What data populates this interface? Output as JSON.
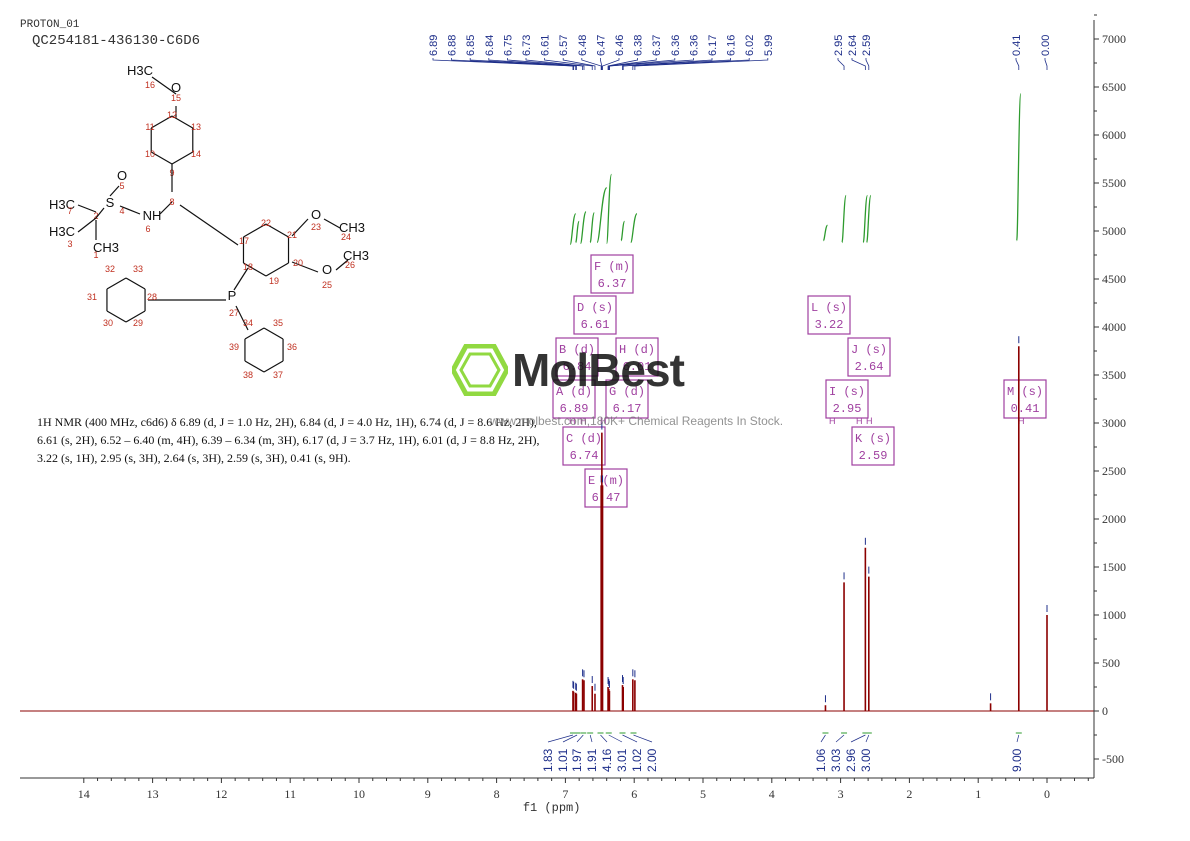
{
  "header": {
    "line1": "PROTON_01",
    "line2": "QC254181-436130-C6D6"
  },
  "summary_text": "1H NMR (400 MHz, c6d6) δ 6.89 (d, J = 1.0 Hz, 2H), 6.84 (d, J = 4.0 Hz, 1H), 6.74 (d, J = 8.6 Hz, 2H), 6.61 (s, 2H), 6.52 – 6.40 (m, 4H), 6.39 – 6.34 (m, 3H), 6.17 (d, J = 3.7 Hz, 1H), 6.01 (d, J = 8.8 Hz, 2H), 3.22 (s, 1H), 2.95 (s, 3H), 2.64 (s, 3H), 2.59 (s, 3H), 0.41 (s, 9H).",
  "watermark": {
    "word": "MolBest",
    "tagline": "www.molbest.com,180K+ Chemical Reagents In Stock."
  },
  "chart_data": {
    "type": "line",
    "xlabel": "f1 (ppm)",
    "x_reversed": true,
    "xlim": [
      -0.65,
      14.9
    ],
    "ylim": [
      -700,
      7200
    ],
    "x_ticks": [
      14,
      13,
      12,
      11,
      10,
      9,
      8,
      7,
      6,
      5,
      4,
      3,
      2,
      1,
      0
    ],
    "y_ticks": [
      -500,
      0,
      500,
      1000,
      1500,
      2000,
      2500,
      3000,
      3500,
      4000,
      4500,
      5000,
      5500,
      6000,
      6500,
      7000
    ],
    "peak_labels_left": [
      "6.89",
      "6.88",
      "6.85",
      "6.84",
      "6.75",
      "6.73",
      "6.61",
      "6.57",
      "6.48",
      "6.47",
      "6.46",
      "6.38",
      "6.37",
      "6.36",
      "6.36",
      "6.17",
      "6.16",
      "6.02",
      "5.99"
    ],
    "peak_labels_right": [
      "2.95",
      "2.64",
      "2.59"
    ],
    "peak_labels_far": [
      "0.41",
      "0.00"
    ],
    "peaks": [
      {
        "ppm": 6.89,
        "height": 210
      },
      {
        "ppm": 6.88,
        "height": 200
      },
      {
        "ppm": 6.85,
        "height": 190
      },
      {
        "ppm": 6.84,
        "height": 180
      },
      {
        "ppm": 6.75,
        "height": 330
      },
      {
        "ppm": 6.73,
        "height": 320
      },
      {
        "ppm": 6.61,
        "height": 260
      },
      {
        "ppm": 6.57,
        "height": 180
      },
      {
        "ppm": 6.48,
        "height": 2350
      },
      {
        "ppm": 6.47,
        "height": 2900
      },
      {
        "ppm": 6.46,
        "height": 2350
      },
      {
        "ppm": 6.38,
        "height": 250
      },
      {
        "ppm": 6.37,
        "height": 230
      },
      {
        "ppm": 6.36,
        "height": 210
      },
      {
        "ppm": 6.17,
        "height": 270
      },
      {
        "ppm": 6.16,
        "height": 250
      },
      {
        "ppm": 6.02,
        "height": 330
      },
      {
        "ppm": 5.99,
        "height": 320
      },
      {
        "ppm": 3.22,
        "height": 60
      },
      {
        "ppm": 2.95,
        "height": 1340
      },
      {
        "ppm": 2.64,
        "height": 1700
      },
      {
        "ppm": 2.59,
        "height": 1400
      },
      {
        "ppm": 0.82,
        "height": 80
      },
      {
        "ppm": 0.41,
        "height": 3800
      },
      {
        "ppm": 0.0,
        "height": 1000
      }
    ],
    "integration_curves": [
      {
        "ppm_from": 6.93,
        "ppm_to": 6.85,
        "y_from": 4860,
        "y_to": 5180
      },
      {
        "ppm_from": 6.85,
        "ppm_to": 6.8,
        "y_from": 4880,
        "y_to": 5100
      },
      {
        "ppm_from": 6.78,
        "ppm_to": 6.7,
        "y_from": 4870,
        "y_to": 5200
      },
      {
        "ppm_from": 6.64,
        "ppm_to": 6.58,
        "y_from": 4880,
        "y_to": 5190
      },
      {
        "ppm_from": 6.54,
        "ppm_to": 6.4,
        "y_from": 4880,
        "y_to": 5450
      },
      {
        "ppm_from": 6.4,
        "ppm_to": 6.33,
        "y_from": 4870,
        "y_to": 5590
      },
      {
        "ppm_from": 6.19,
        "ppm_to": 6.14,
        "y_from": 4900,
        "y_to": 5100
      },
      {
        "ppm_from": 6.05,
        "ppm_to": 5.96,
        "y_from": 4880,
        "y_to": 5180
      },
      {
        "ppm_from": 3.25,
        "ppm_to": 3.19,
        "y_from": 4900,
        "y_to": 5060
      },
      {
        "ppm_from": 2.98,
        "ppm_to": 2.92,
        "y_from": 4880,
        "y_to": 5370
      },
      {
        "ppm_from": 2.67,
        "ppm_to": 2.61,
        "y_from": 4880,
        "y_to": 5370
      },
      {
        "ppm_from": 2.62,
        "ppm_to": 2.56,
        "y_from": 4880,
        "y_to": 5370
      },
      {
        "ppm_from": 0.44,
        "ppm_to": 0.38,
        "y_from": 4900,
        "y_to": 6430
      }
    ],
    "integrals": [
      {
        "ppm": 6.89,
        "value": "1.83"
      },
      {
        "ppm": 6.83,
        "value": "1.01"
      },
      {
        "ppm": 6.74,
        "value": "1.97"
      },
      {
        "ppm": 6.64,
        "value": "1.91"
      },
      {
        "ppm": 6.49,
        "value": "4.16"
      },
      {
        "ppm": 6.37,
        "value": "3.01"
      },
      {
        "ppm": 6.17,
        "value": "1.02"
      },
      {
        "ppm": 6.01,
        "value": "2.00"
      },
      {
        "ppm": 3.22,
        "value": "1.06"
      },
      {
        "ppm": 2.95,
        "value": "3.03"
      },
      {
        "ppm": 2.64,
        "value": "2.96"
      },
      {
        "ppm": 2.59,
        "value": "3.00"
      },
      {
        "ppm": 0.41,
        "value": "9.00"
      }
    ],
    "multiplets": [
      {
        "letter": "F",
        "mult": "m",
        "shift": "6.37"
      },
      {
        "letter": "D",
        "mult": "s",
        "shift": "6.61"
      },
      {
        "letter": "B",
        "mult": "d",
        "shift": "6.84"
      },
      {
        "letter": "H",
        "mult": "d",
        "shift": "6.01"
      },
      {
        "letter": "A",
        "mult": "d",
        "shift": "6.89"
      },
      {
        "letter": "G",
        "mult": "d",
        "shift": "6.17"
      },
      {
        "letter": "C",
        "mult": "d",
        "shift": "6.74"
      },
      {
        "letter": "E",
        "mult": "m",
        "shift": "6.47"
      },
      {
        "letter": "L",
        "mult": "s",
        "shift": "3.22"
      },
      {
        "letter": "J",
        "mult": "s",
        "shift": "2.64"
      },
      {
        "letter": "I",
        "mult": "s",
        "shift": "2.95"
      },
      {
        "letter": "K",
        "mult": "s",
        "shift": "2.59"
      },
      {
        "letter": "M",
        "mult": "s",
        "shift": "0.41"
      }
    ]
  },
  "structure": {
    "atom_labels": [
      "H3C",
      "16",
      "O",
      "15",
      "12",
      "11",
      "13",
      "10",
      "14",
      "9",
      "O",
      "5",
      "S",
      "4",
      "NH",
      "6",
      "8",
      "H3C",
      "7",
      "2",
      "H3C",
      "3",
      "CH3",
      "1",
      "22",
      "O",
      "23",
      "CH3",
      "24",
      "21",
      "17",
      "20",
      "O",
      "CH3",
      "26",
      "25",
      "18",
      "19",
      "32",
      "33",
      "31",
      "28",
      "P",
      "27",
      "30",
      "29",
      "34",
      "35",
      "39",
      "36",
      "38",
      "37"
    ]
  },
  "colors": {
    "spectrum": "#8b0000",
    "integral_curve": "#2e9b2e",
    "peak_label": "#1f2f8a",
    "box": "#a040a0",
    "atom_number": "#c03020",
    "axis": "#333333"
  }
}
